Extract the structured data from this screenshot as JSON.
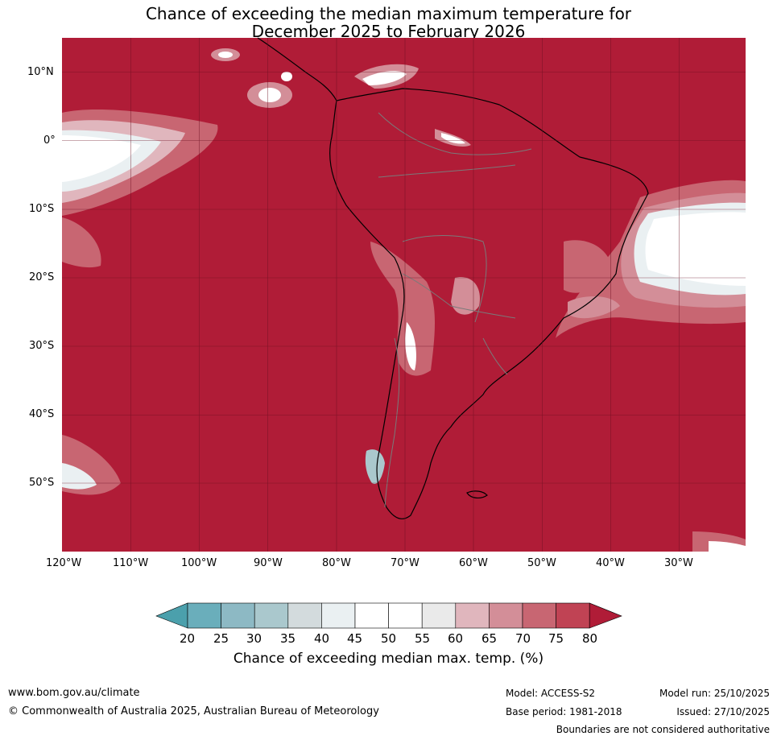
{
  "title": {
    "line1": "Chance of exceeding the median maximum temperature for",
    "line2": "December 2025 to February 2026"
  },
  "map": {
    "lat_labels": [
      "10°N",
      "0°",
      "10°S",
      "20°S",
      "30°S",
      "40°S",
      "50°S"
    ],
    "lon_labels": [
      "120°W",
      "110°W",
      "100°W",
      "90°W",
      "80°W",
      "70°W",
      "60°W",
      "50°W",
      "40°W",
      "30°W"
    ],
    "colors": {
      "ocean_fill": "#b01c37",
      "grid": "#6a0f20",
      "coast": "#000000",
      "borders": "#7a7a7a"
    }
  },
  "colorbar": {
    "tick_labels": [
      "20",
      "25",
      "30",
      "35",
      "40",
      "45",
      "50",
      "55",
      "60",
      "65",
      "70",
      "75",
      "80"
    ],
    "label": "Chance of exceeding median max. temp. (%)",
    "colors": [
      "#4ba0ac",
      "#6aaebb",
      "#8db9c4",
      "#aac8cd",
      "#d3dbdd",
      "#eaf0f2",
      "#ffffff",
      "#ffffff",
      "#eaeaea",
      "#e0b6bd",
      "#d38e98",
      "#c86672",
      "#c04354",
      "#b01c37"
    ]
  },
  "footer": {
    "website": "www.bom.gov.au/climate",
    "copyright": "© Commonwealth of Australia 2025, Australian Bureau of Meteorology",
    "model": "Model: ACCESS-S2",
    "base_period": "Base period: 1981-2018",
    "model_run": "Model run: 25/10/2025",
    "issued": "Issued: 27/10/2025",
    "disclaimer": "Boundaries are not considered authoritative"
  }
}
